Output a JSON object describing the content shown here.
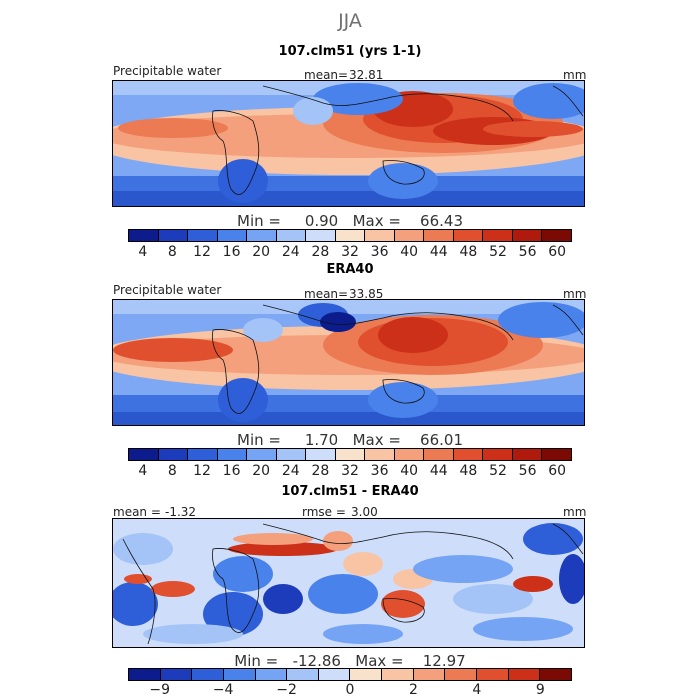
{
  "figure": {
    "season": "JJA"
  },
  "colors": {
    "abs_scale": [
      "#0c1c8c",
      "#1c3cbc",
      "#2e5ed8",
      "#4a82ec",
      "#76a4f4",
      "#a4c4f8",
      "#cedefa",
      "#f8e2cc",
      "#f8c4a4",
      "#f4a07c",
      "#ec7a52",
      "#e0502e",
      "#cc3018",
      "#b01a0c",
      "#7c0a04"
    ],
    "diff_scale": [
      "#0c1c8c",
      "#1c3cbc",
      "#2e5ed8",
      "#4a82ec",
      "#76a4f4",
      "#a4c4f8",
      "#cedefa",
      "#f8e2cc",
      "#f8c4a4",
      "#f4a07c",
      "#ec7a52",
      "#e0502e",
      "#cc3018",
      "#7c0a04"
    ]
  },
  "panels": [
    {
      "title": "107.clm51 (yrs 1-1)",
      "variable": "Precipitable water",
      "mean_label": "mean=",
      "mean_value": "32.81",
      "units": "mm",
      "min_label": "Min =",
      "min_value": "0.90",
      "max_label": "Max =",
      "max_value": "66.43",
      "ticks": [
        "4",
        "8",
        "12",
        "16",
        "20",
        "24",
        "28",
        "32",
        "36",
        "40",
        "44",
        "48",
        "52",
        "56",
        "60"
      ]
    },
    {
      "title": "ERA40",
      "variable": "Precipitable water",
      "mean_label": "mean=",
      "mean_value": "33.85",
      "units": "mm",
      "min_label": "Min =",
      "min_value": "1.70",
      "max_label": "Max =",
      "max_value": "66.01",
      "ticks": [
        "4",
        "8",
        "12",
        "16",
        "20",
        "24",
        "28",
        "32",
        "36",
        "40",
        "44",
        "48",
        "52",
        "56",
        "60"
      ]
    },
    {
      "title": "107.clm51 - ERA40",
      "mean_label": "mean =",
      "mean_value": "-1.32",
      "rmse_label": "rmse =",
      "rmse_value": "3.00",
      "units": "mm",
      "min_label": "Min =",
      "min_value": "-12.86",
      "max_label": "Max =",
      "max_value": "12.97",
      "ticks": [
        "-9",
        "-4",
        "-2",
        "0",
        "2",
        "4",
        "9"
      ]
    }
  ]
}
